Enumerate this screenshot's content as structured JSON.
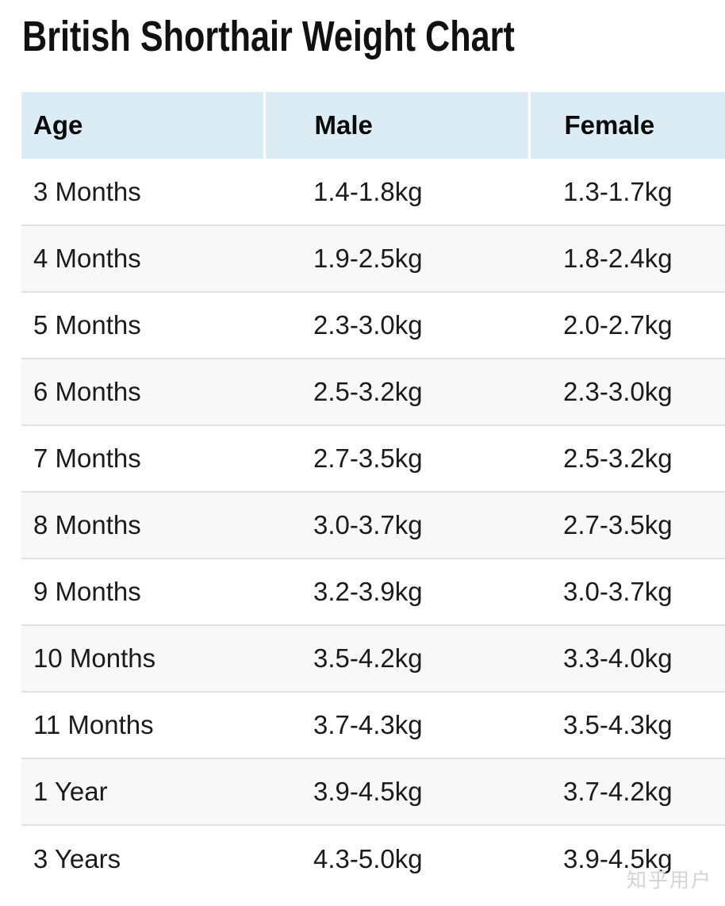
{
  "page": {
    "title": "British Shorthair Weight Chart",
    "watermark": "知乎用户"
  },
  "table": {
    "headers": {
      "age": "Age",
      "male": "Male",
      "female": "Female"
    },
    "rows": [
      {
        "age": "3 Months",
        "male": "1.4-1.8kg",
        "female": "1.3-1.7kg"
      },
      {
        "age": "4 Months",
        "male": "1.9-2.5kg",
        "female": "1.8-2.4kg"
      },
      {
        "age": "5 Months",
        "male": "2.3-3.0kg",
        "female": "2.0-2.7kg"
      },
      {
        "age": "6 Months",
        "male": "2.5-3.2kg",
        "female": "2.3-3.0kg"
      },
      {
        "age": "7 Months",
        "male": "2.7-3.5kg",
        "female": "2.5-3.2kg"
      },
      {
        "age": "8 Months",
        "male": "3.0-3.7kg",
        "female": "2.7-3.5kg"
      },
      {
        "age": "9 Months",
        "male": "3.2-3.9kg",
        "female": "3.0-3.7kg"
      },
      {
        "age": "10 Months",
        "male": "3.5-4.2kg",
        "female": "3.3-4.0kg"
      },
      {
        "age": "11 Months",
        "male": "3.7-4.3kg",
        "female": "3.5-4.3kg"
      },
      {
        "age": "1 Year",
        "male": "3.9-4.5kg",
        "female": "3.7-4.2kg"
      },
      {
        "age": "3 Years",
        "male": "4.3-5.0kg",
        "female": "3.9-4.5kg"
      }
    ]
  },
  "colors": {
    "header_bg": "#dbecf4",
    "stripe_bg": "#f8f8f8",
    "row_border": "#e2e2e2",
    "title_text": "#111111",
    "body_text": "#1b1b1b",
    "watermark_text": "#d3d3d3"
  },
  "chart_data": {
    "type": "table",
    "title": "British Shorthair Weight Chart",
    "columns": [
      "Age",
      "Male",
      "Female"
    ],
    "rows": [
      [
        "3 Months",
        "1.4-1.8kg",
        "1.3-1.7kg"
      ],
      [
        "4 Months",
        "1.9-2.5kg",
        "1.8-2.4kg"
      ],
      [
        "5 Months",
        "2.3-3.0kg",
        "2.0-2.7kg"
      ],
      [
        "6 Months",
        "2.5-3.2kg",
        "2.3-3.0kg"
      ],
      [
        "7 Months",
        "2.7-3.5kg",
        "2.5-3.2kg"
      ],
      [
        "8 Months",
        "3.0-3.7kg",
        "2.7-3.5kg"
      ],
      [
        "9 Months",
        "3.2-3.9kg",
        "3.0-3.7kg"
      ],
      [
        "10 Months",
        "3.5-4.2kg",
        "3.3-4.0kg"
      ],
      [
        "11 Months",
        "3.7-4.3kg",
        "3.5-4.3kg"
      ],
      [
        "1 Year",
        "3.9-4.5kg",
        "3.7-4.2kg"
      ],
      [
        "3 Years",
        "4.3-5.0kg",
        "3.9-4.5kg"
      ]
    ]
  }
}
